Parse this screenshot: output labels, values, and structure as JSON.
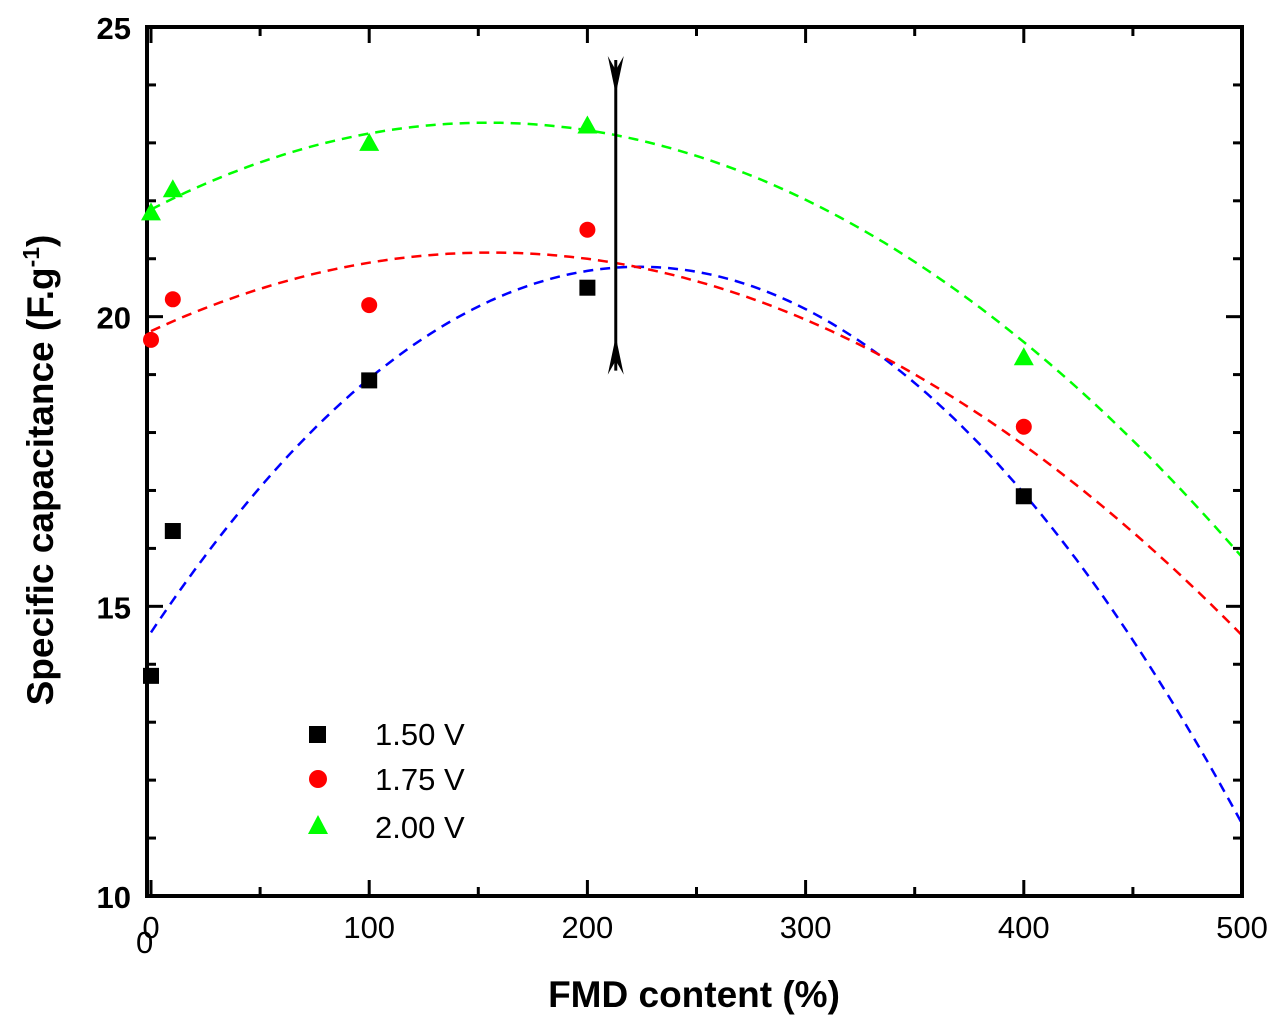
{
  "chart_data": {
    "type": "scatter",
    "title": "",
    "xlabel": "FMD content (%)",
    "ylabel_main": "Specific capacitance (F.g",
    "ylabel_sup": "-1",
    "ylabel_close": ")",
    "xlim": [
      0,
      500
    ],
    "ylim": [
      10,
      25
    ],
    "x_ticks": [
      0,
      100,
      200,
      300,
      400,
      500
    ],
    "y_ticks": [
      10,
      15,
      20,
      25
    ],
    "x_origin_label": "0",
    "grid": false,
    "legend_position": "bottom-left",
    "series": [
      {
        "name": "1.50 V",
        "marker": "square",
        "color": "#000000",
        "fit_color": "#0000ff",
        "x": [
          0,
          10,
          100,
          200,
          400
        ],
        "y": [
          13.8,
          16.3,
          18.9,
          20.5,
          16.9
        ],
        "fit": [
          14.55,
          0.0564,
          -0.000126
        ]
      },
      {
        "name": "1.75 V",
        "marker": "circle",
        "color": "#ff0000",
        "fit_color": "#ff0000",
        "x": [
          0,
          10,
          100,
          200,
          400
        ],
        "y": [
          19.6,
          20.3,
          20.2,
          21.5,
          18.1
        ],
        "fit": [
          19.75,
          0.0174,
          -5.58e-05
        ]
      },
      {
        "name": "2.00 V",
        "marker": "triangle",
        "color": "#00ff00",
        "fit_color": "#00ff00",
        "x": [
          0,
          10,
          100,
          200,
          400
        ],
        "y": [
          21.8,
          22.2,
          23.0,
          23.3,
          19.3
        ],
        "fit": [
          21.85,
          0.0194,
          -6.28e-05
        ]
      }
    ],
    "annotation": {
      "type": "vertical-double-arrow",
      "x": 213,
      "y_top": 24.5,
      "y_bottom": 19.0
    }
  }
}
